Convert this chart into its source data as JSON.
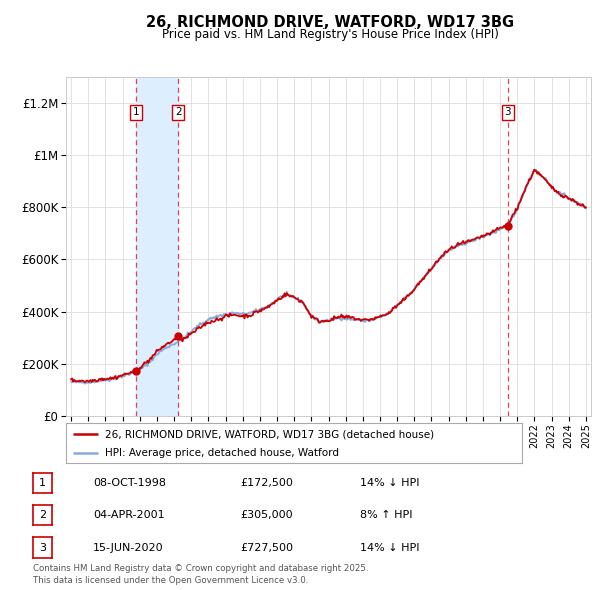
{
  "title": "26, RICHMOND DRIVE, WATFORD, WD17 3BG",
  "subtitle": "Price paid vs. HM Land Registry's House Price Index (HPI)",
  "ylim": [
    0,
    1300000
  ],
  "yticks": [
    0,
    200000,
    400000,
    600000,
    800000,
    1000000,
    1200000
  ],
  "ytick_labels": [
    "£0",
    "£200K",
    "£400K",
    "£600K",
    "£800K",
    "£1M",
    "£1.2M"
  ],
  "background_color": "#ffffff",
  "plot_bg_color": "#ffffff",
  "sale_color": "#cc0000",
  "hpi_color": "#88aadd",
  "hpi_fill_color": "#ccddf0",
  "vline_color": "#cc0000",
  "shade_color": "#ddeeff",
  "transactions": [
    {
      "num": 1,
      "year": 1998.77,
      "price": 172500
    },
    {
      "num": 2,
      "year": 2001.25,
      "price": 305000
    },
    {
      "num": 3,
      "year": 2020.46,
      "price": 727500
    }
  ],
  "legend_label_sale": "26, RICHMOND DRIVE, WATFORD, WD17 3BG (detached house)",
  "legend_label_hpi": "HPI: Average price, detached house, Watford",
  "footer": "Contains HM Land Registry data © Crown copyright and database right 2025.\nThis data is licensed under the Open Government Licence v3.0.",
  "table_rows": [
    {
      "num": 1,
      "date": "08-OCT-1998",
      "price": "£172,500",
      "pct": "14% ↓ HPI"
    },
    {
      "num": 2,
      "date": "04-APR-2001",
      "price": "£305,000",
      "pct": "8% ↑ HPI"
    },
    {
      "num": 3,
      "date": "15-JUN-2020",
      "price": "£727,500",
      "pct": "14% ↓ HPI"
    }
  ]
}
